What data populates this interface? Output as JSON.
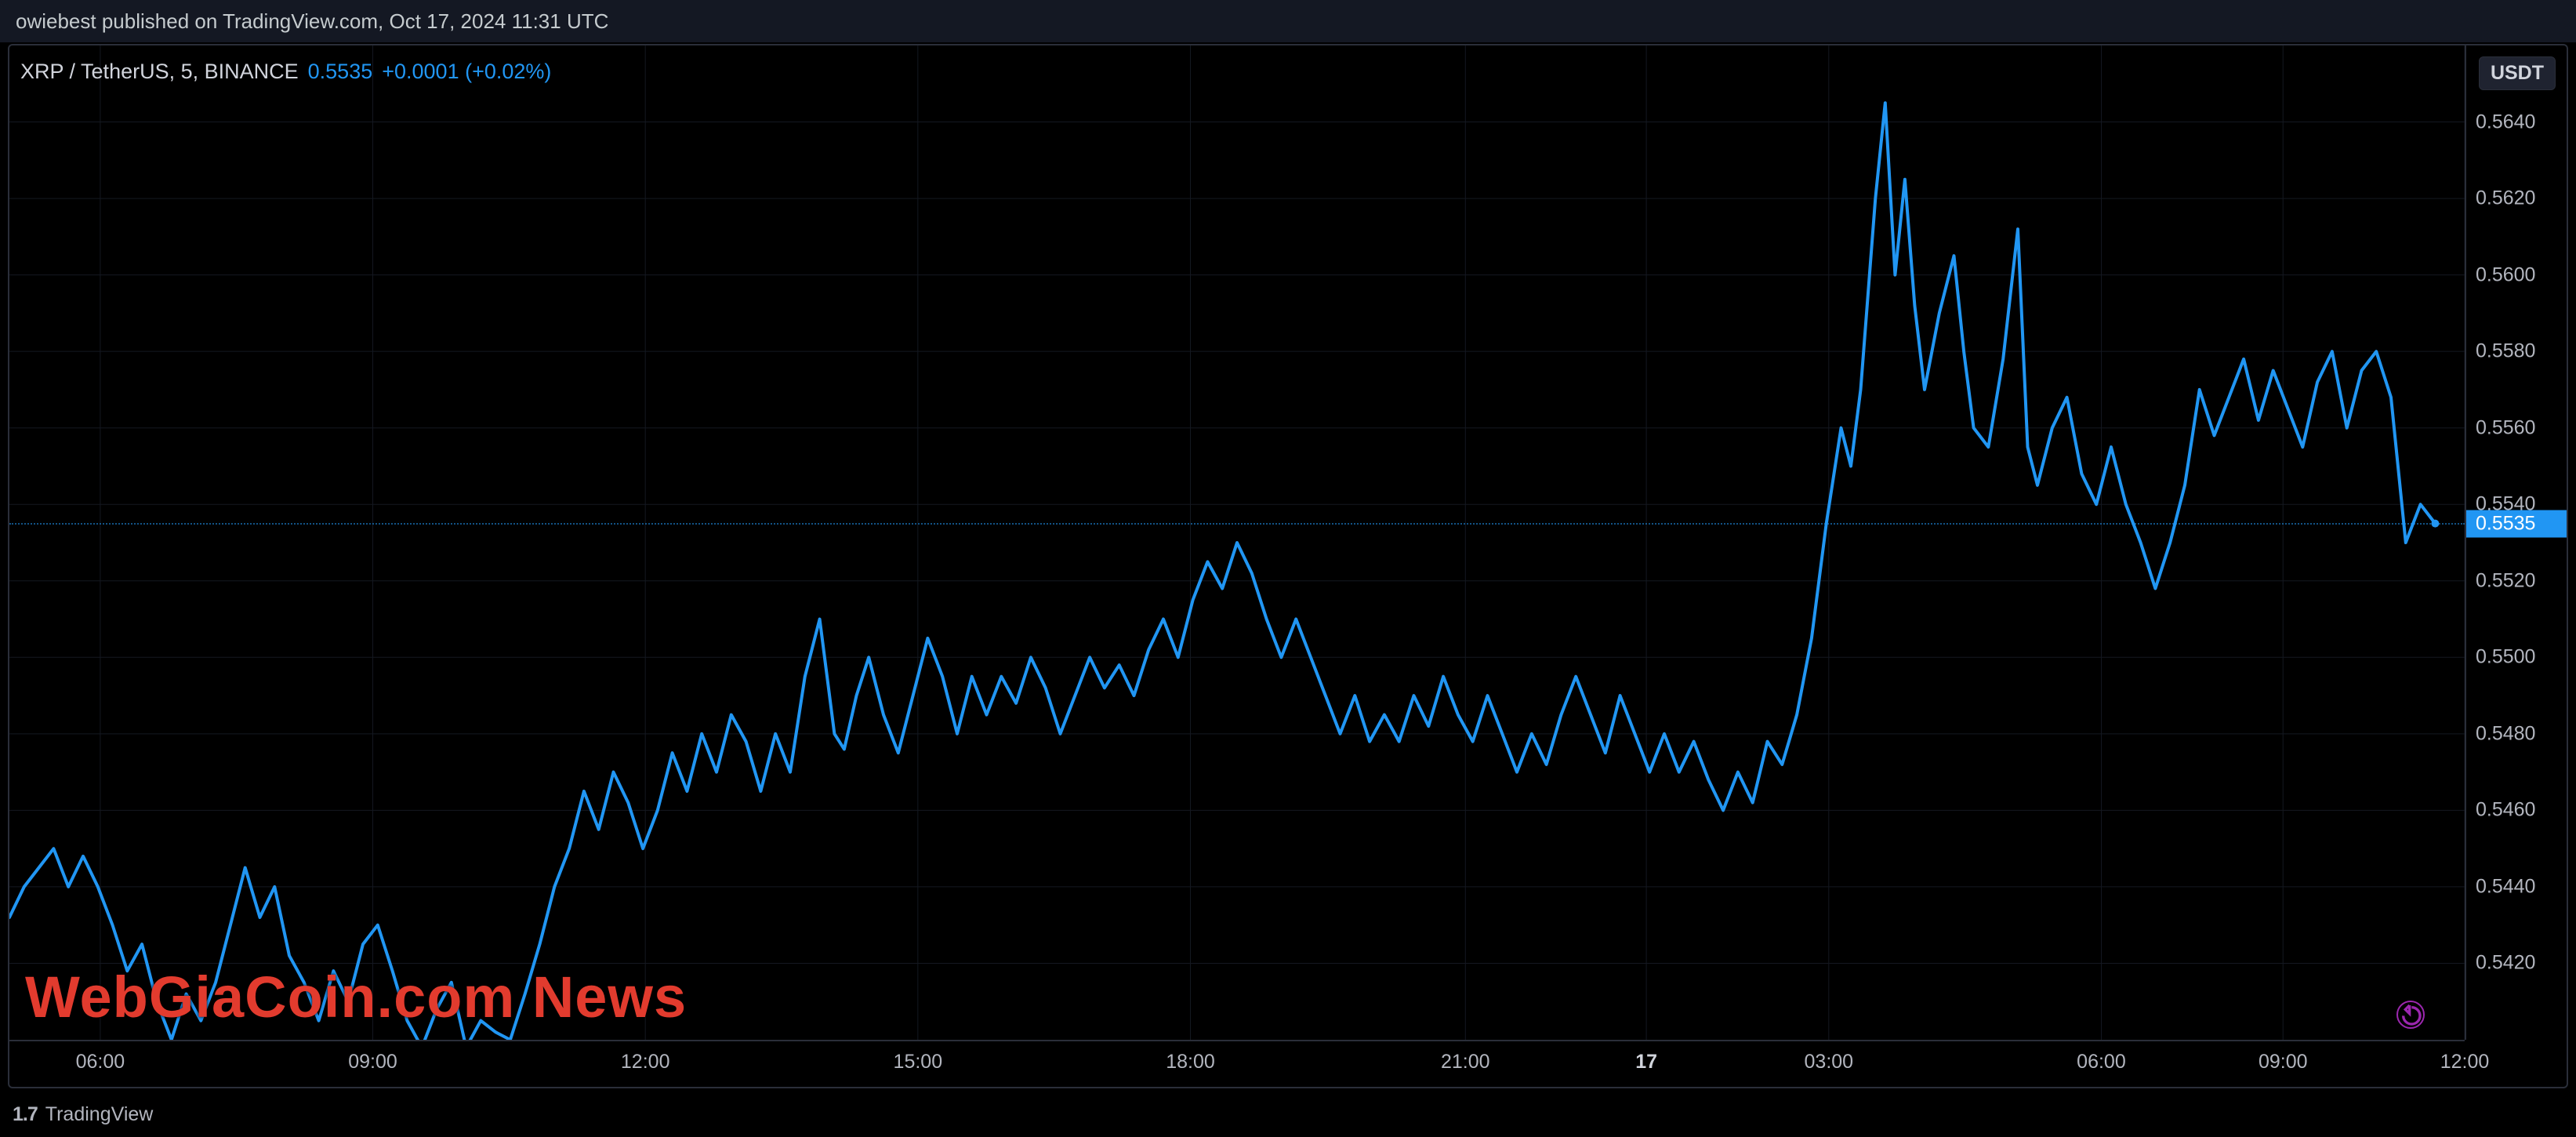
{
  "publish_bar": "owiebest published on TradingView.com, Oct 17, 2024 11:31 UTC",
  "legend": {
    "symbol": "XRP / TetherUS, 5, BINANCE",
    "last": "0.5535",
    "change": "+0.0001 (+0.02%)"
  },
  "branding": "TradingView",
  "watermark": "WebGiaCoin.com News",
  "chart": {
    "type": "line",
    "line_color": "#2196f3",
    "line_width": 4,
    "background": "#000000",
    "grid_color": "#141821",
    "grid_on": true,
    "ylim": [
      0.54,
      0.566
    ],
    "y_ticks": [
      0.542,
      0.544,
      0.546,
      0.548,
      0.55,
      0.552,
      0.554,
      0.556,
      0.558,
      0.56,
      0.562,
      0.564
    ],
    "y_tick_labels": [
      "0.5420",
      "0.5440",
      "0.5460",
      "0.5480",
      "0.5500",
      "0.5520",
      "0.5540",
      "0.5560",
      "0.5580",
      "0.5600",
      "0.5620",
      "0.5640"
    ],
    "y_unit": "USDT",
    "price_tag": "0.5535",
    "x_ticks": [
      {
        "x": 0.037,
        "label": "06:00"
      },
      {
        "x": 0.148,
        "label": "09:00"
      },
      {
        "x": 0.259,
        "label": "12:00"
      },
      {
        "x": 0.37,
        "label": "15:00"
      },
      {
        "x": 0.481,
        "label": "18:00"
      },
      {
        "x": 0.593,
        "label": "21:00"
      },
      {
        "x": 0.6667,
        "label": "17",
        "bold": true
      },
      {
        "x": 0.741,
        "label": "03:00"
      },
      {
        "x": 0.852,
        "label": "06:00"
      },
      {
        "x": 0.926,
        "label": "09:00"
      },
      {
        "x": 1.0,
        "label": "12:00"
      }
    ],
    "series": [
      [
        0.0,
        0.5432
      ],
      [
        0.006,
        0.544
      ],
      [
        0.012,
        0.5445
      ],
      [
        0.018,
        0.545
      ],
      [
        0.024,
        0.544
      ],
      [
        0.03,
        0.5448
      ],
      [
        0.036,
        0.544
      ],
      [
        0.042,
        0.543
      ],
      [
        0.048,
        0.5418
      ],
      [
        0.054,
        0.5425
      ],
      [
        0.06,
        0.541
      ],
      [
        0.066,
        0.54
      ],
      [
        0.072,
        0.5412
      ],
      [
        0.078,
        0.5405
      ],
      [
        0.084,
        0.5415
      ],
      [
        0.09,
        0.543
      ],
      [
        0.096,
        0.5445
      ],
      [
        0.102,
        0.5432
      ],
      [
        0.108,
        0.544
      ],
      [
        0.114,
        0.5422
      ],
      [
        0.12,
        0.5415
      ],
      [
        0.126,
        0.5405
      ],
      [
        0.132,
        0.5418
      ],
      [
        0.138,
        0.541
      ],
      [
        0.144,
        0.5425
      ],
      [
        0.15,
        0.543
      ],
      [
        0.156,
        0.5418
      ],
      [
        0.162,
        0.5405
      ],
      [
        0.168,
        0.5398
      ],
      [
        0.174,
        0.5408
      ],
      [
        0.18,
        0.5415
      ],
      [
        0.186,
        0.5398
      ],
      [
        0.192,
        0.5405
      ],
      [
        0.198,
        0.5402
      ],
      [
        0.204,
        0.54
      ],
      [
        0.21,
        0.5412
      ],
      [
        0.216,
        0.5425
      ],
      [
        0.222,
        0.544
      ],
      [
        0.228,
        0.545
      ],
      [
        0.234,
        0.5465
      ],
      [
        0.24,
        0.5455
      ],
      [
        0.246,
        0.547
      ],
      [
        0.252,
        0.5462
      ],
      [
        0.258,
        0.545
      ],
      [
        0.264,
        0.546
      ],
      [
        0.27,
        0.5475
      ],
      [
        0.276,
        0.5465
      ],
      [
        0.282,
        0.548
      ],
      [
        0.288,
        0.547
      ],
      [
        0.294,
        0.5485
      ],
      [
        0.3,
        0.5478
      ],
      [
        0.306,
        0.5465
      ],
      [
        0.312,
        0.548
      ],
      [
        0.318,
        0.547
      ],
      [
        0.324,
        0.5495
      ],
      [
        0.33,
        0.551
      ],
      [
        0.336,
        0.548
      ],
      [
        0.34,
        0.5476
      ],
      [
        0.345,
        0.549
      ],
      [
        0.35,
        0.55
      ],
      [
        0.356,
        0.5485
      ],
      [
        0.362,
        0.5475
      ],
      [
        0.368,
        0.549
      ],
      [
        0.374,
        0.5505
      ],
      [
        0.38,
        0.5495
      ],
      [
        0.386,
        0.548
      ],
      [
        0.392,
        0.5495
      ],
      [
        0.398,
        0.5485
      ],
      [
        0.404,
        0.5495
      ],
      [
        0.41,
        0.5488
      ],
      [
        0.416,
        0.55
      ],
      [
        0.422,
        0.5492
      ],
      [
        0.428,
        0.548
      ],
      [
        0.434,
        0.549
      ],
      [
        0.44,
        0.55
      ],
      [
        0.446,
        0.5492
      ],
      [
        0.452,
        0.5498
      ],
      [
        0.458,
        0.549
      ],
      [
        0.464,
        0.5502
      ],
      [
        0.47,
        0.551
      ],
      [
        0.476,
        0.55
      ],
      [
        0.482,
        0.5515
      ],
      [
        0.488,
        0.5525
      ],
      [
        0.494,
        0.5518
      ],
      [
        0.5,
        0.553
      ],
      [
        0.506,
        0.5522
      ],
      [
        0.512,
        0.551
      ],
      [
        0.518,
        0.55
      ],
      [
        0.524,
        0.551
      ],
      [
        0.53,
        0.55
      ],
      [
        0.536,
        0.549
      ],
      [
        0.542,
        0.548
      ],
      [
        0.548,
        0.549
      ],
      [
        0.554,
        0.5478
      ],
      [
        0.56,
        0.5485
      ],
      [
        0.566,
        0.5478
      ],
      [
        0.572,
        0.549
      ],
      [
        0.578,
        0.5482
      ],
      [
        0.584,
        0.5495
      ],
      [
        0.59,
        0.5485
      ],
      [
        0.596,
        0.5478
      ],
      [
        0.602,
        0.549
      ],
      [
        0.608,
        0.548
      ],
      [
        0.614,
        0.547
      ],
      [
        0.62,
        0.548
      ],
      [
        0.626,
        0.5472
      ],
      [
        0.632,
        0.5485
      ],
      [
        0.638,
        0.5495
      ],
      [
        0.644,
        0.5485
      ],
      [
        0.65,
        0.5475
      ],
      [
        0.656,
        0.549
      ],
      [
        0.662,
        0.548
      ],
      [
        0.668,
        0.547
      ],
      [
        0.674,
        0.548
      ],
      [
        0.68,
        0.547
      ],
      [
        0.686,
        0.5478
      ],
      [
        0.692,
        0.5468
      ],
      [
        0.698,
        0.546
      ],
      [
        0.704,
        0.547
      ],
      [
        0.71,
        0.5462
      ],
      [
        0.716,
        0.5478
      ],
      [
        0.722,
        0.5472
      ],
      [
        0.728,
        0.5485
      ],
      [
        0.734,
        0.5505
      ],
      [
        0.74,
        0.5535
      ],
      [
        0.746,
        0.556
      ],
      [
        0.75,
        0.555
      ],
      [
        0.754,
        0.557
      ],
      [
        0.76,
        0.562
      ],
      [
        0.764,
        0.5645
      ],
      [
        0.768,
        0.56
      ],
      [
        0.772,
        0.5625
      ],
      [
        0.776,
        0.5592
      ],
      [
        0.78,
        0.557
      ],
      [
        0.786,
        0.559
      ],
      [
        0.792,
        0.5605
      ],
      [
        0.796,
        0.558
      ],
      [
        0.8,
        0.556
      ],
      [
        0.806,
        0.5555
      ],
      [
        0.812,
        0.5578
      ],
      [
        0.818,
        0.5612
      ],
      [
        0.822,
        0.5555
      ],
      [
        0.826,
        0.5545
      ],
      [
        0.832,
        0.556
      ],
      [
        0.838,
        0.5568
      ],
      [
        0.844,
        0.5548
      ],
      [
        0.85,
        0.554
      ],
      [
        0.856,
        0.5555
      ],
      [
        0.862,
        0.554
      ],
      [
        0.868,
        0.553
      ],
      [
        0.874,
        0.5518
      ],
      [
        0.88,
        0.553
      ],
      [
        0.886,
        0.5545
      ],
      [
        0.892,
        0.557
      ],
      [
        0.898,
        0.5558
      ],
      [
        0.904,
        0.5568
      ],
      [
        0.91,
        0.5578
      ],
      [
        0.916,
        0.5562
      ],
      [
        0.922,
        0.5575
      ],
      [
        0.928,
        0.5565
      ],
      [
        0.934,
        0.5555
      ],
      [
        0.94,
        0.5572
      ],
      [
        0.946,
        0.558
      ],
      [
        0.952,
        0.556
      ],
      [
        0.958,
        0.5575
      ],
      [
        0.964,
        0.558
      ],
      [
        0.97,
        0.5568
      ],
      [
        0.976,
        0.553
      ],
      [
        0.982,
        0.554
      ],
      [
        0.988,
        0.5535
      ]
    ]
  }
}
